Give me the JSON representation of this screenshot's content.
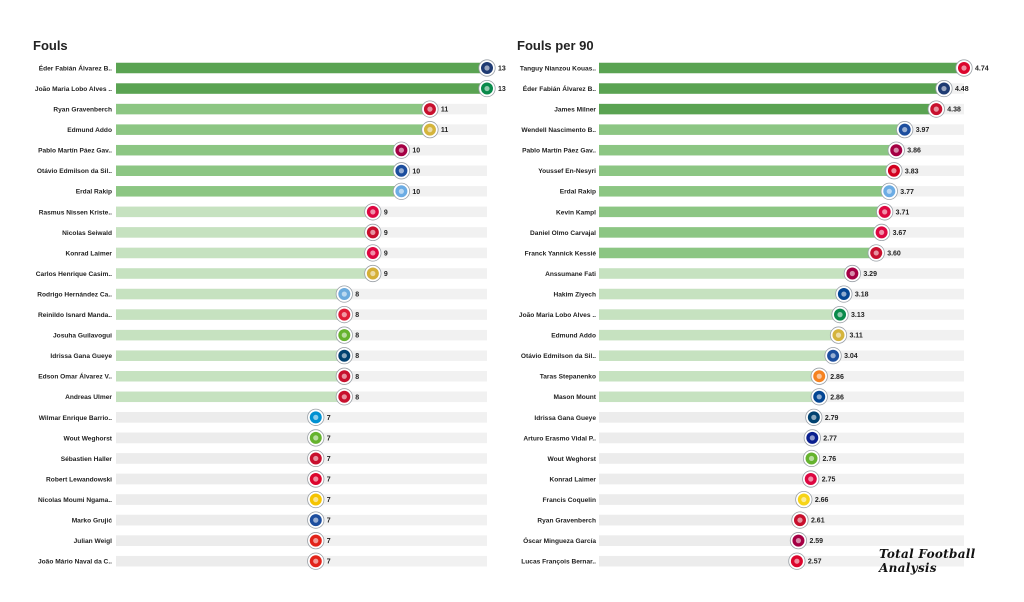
{
  "brand": "Total Football Analysis",
  "chart_data": [
    {
      "type": "bar",
      "orientation": "horizontal",
      "title": "Fouls",
      "xlim": [
        0,
        13
      ],
      "categories": [
        "Éder Fabián Álvarez B..",
        "João Maria Lobo Alves ..",
        "Ryan Gravenberch",
        "Edmund Addo",
        "Pablo Martín Páez Gav..",
        "Otávio Edmilson da Sil..",
        "Erdal Rakip",
        "Rasmus Nissen Kriste..",
        "Nicolas Seiwald",
        "Konrad Laimer",
        "Carlos Henrique Casim..",
        "Rodrigo Hernández Ca..",
        "Reinildo Isnard Manda..",
        "Josuha Guilavogui",
        "Idrissa Gana Gueye",
        "Edson Omar Álvarez V..",
        "Andreas Ulmer",
        "Wilmar Enrique Barrio..",
        "Wout Weghorst",
        "Sébastien Haller",
        "Robert Lewandowski",
        "Nicolas Moumi Ngama..",
        "Marko Grujić",
        "Julian Weigl",
        "João Mário Naval da C.."
      ],
      "values": [
        13,
        13,
        11,
        11,
        10,
        10,
        10,
        9,
        9,
        9,
        9,
        8,
        8,
        8,
        8,
        8,
        8,
        7,
        7,
        7,
        7,
        7,
        7,
        7,
        7
      ],
      "value_labels": [
        "13",
        "13",
        "11",
        "11",
        "10",
        "10",
        "10",
        "9",
        "9",
        "9",
        "9",
        "8",
        "8",
        "8",
        "8",
        "8",
        "8",
        "7",
        "7",
        "7",
        "7",
        "7",
        "7",
        "7",
        "7"
      ],
      "logos": [
        "club-brugge-icon",
        "sporting-cp-icon",
        "ajax-icon",
        "sheriff-icon",
        "barcelona-icon",
        "porto-icon",
        "malmo-icon",
        "leipzig-icon",
        "salzburg-icon",
        "leipzig-icon",
        "real-madrid-icon",
        "man-city-icon",
        "lille-icon",
        "wolfsburg-icon",
        "psg-icon",
        "ajax-icon",
        "salzburg-icon",
        "zenit-icon",
        "wolfsburg-icon",
        "ajax-icon",
        "bayern-icon",
        "young-boys-icon",
        "porto-icon",
        "benfica-icon",
        "benfica-icon"
      ]
    },
    {
      "type": "bar",
      "orientation": "horizontal",
      "title": "Fouls per 90",
      "xlim": [
        0,
        4.74
      ],
      "categories": [
        "Tanguy Nianzou Kouas..",
        "Éder Fabián Álvarez B..",
        "James Milner",
        "Wendell Nascimento B..",
        "Pablo Martín Páez Gav..",
        "Youssef En-Nesyri",
        "Erdal Rakip",
        "Kevin Kampl",
        "Daniel Olmo Carvajal",
        "Franck Yannick Kessié",
        "Anssumane Fati",
        "Hakim Ziyech",
        "João Maria Lobo Alves ..",
        "Edmund Addo",
        "Otávio Edmilson da Sil..",
        "Taras Stepanenko",
        "Mason Mount",
        "Idrissa Gana Gueye",
        "Arturo Erasmo Vidal P..",
        "Wout Weghorst",
        "Konrad Laimer",
        "Francis Coquelin",
        "Ryan Gravenberch",
        "Óscar Mingueza García",
        "Lucas François Bernar.."
      ],
      "values": [
        4.74,
        4.48,
        4.38,
        3.97,
        3.86,
        3.83,
        3.77,
        3.71,
        3.67,
        3.6,
        3.29,
        3.18,
        3.13,
        3.11,
        3.04,
        2.86,
        2.86,
        2.79,
        2.77,
        2.76,
        2.75,
        2.66,
        2.61,
        2.59,
        2.57
      ],
      "value_labels": [
        "4.74",
        "4.48",
        "4.38",
        "3.97",
        "3.86",
        "3.83",
        "3.77",
        "3.71",
        "3.67",
        "3.60",
        "3.29",
        "3.18",
        "3.13",
        "3.11",
        "3.04",
        "2.86",
        "2.86",
        "2.79",
        "2.77",
        "2.76",
        "2.75",
        "2.66",
        "2.61",
        "2.59",
        "2.57"
      ],
      "logos": [
        "bayern-icon",
        "club-brugge-icon",
        "liverpool-icon",
        "porto-icon",
        "barcelona-icon",
        "sevilla-icon",
        "malmo-icon",
        "leipzig-icon",
        "leipzig-icon",
        "milan-icon",
        "barcelona-icon",
        "chelsea-icon",
        "sporting-cp-icon",
        "sheriff-icon",
        "porto-icon",
        "shakhtar-icon",
        "chelsea-icon",
        "psg-icon",
        "inter-icon",
        "wolfsburg-icon",
        "leipzig-icon",
        "villarreal-icon",
        "ajax-icon",
        "barcelona-icon",
        "bayern-icon"
      ]
    }
  ],
  "colors": {
    "tier1": "#5aa352",
    "tier2": "#8cc683",
    "tier3": "#c6e2c0",
    "tier4": "#ececec"
  },
  "logo_colors": {
    "club-brugge-icon": "#1f3b73",
    "sporting-cp-icon": "#0a8a4b",
    "ajax-icon": "#c8102e",
    "sheriff-icon": "#d4b43c",
    "barcelona-icon": "#a50044",
    "porto-icon": "#1d4e9e",
    "malmo-icon": "#6cace4",
    "leipzig-icon": "#dd0741",
    "salzburg-icon": "#c8102e",
    "real-madrid-icon": "#d4af37",
    "man-city-icon": "#6cabdd",
    "lille-icon": "#e01e37",
    "wolfsburg-icon": "#65b32e",
    "psg-icon": "#004170",
    "zenit-icon": "#0091d2",
    "bayern-icon": "#dc052d",
    "young-boys-icon": "#f5c400",
    "benfica-icon": "#e2231a",
    "liverpool-icon": "#c8102e",
    "sevilla-icon": "#d2001f",
    "milan-icon": "#c8102e",
    "chelsea-icon": "#034694",
    "shakhtar-icon": "#f58220",
    "inter-icon": "#0a1f8f",
    "villarreal-icon": "#f7d417"
  }
}
